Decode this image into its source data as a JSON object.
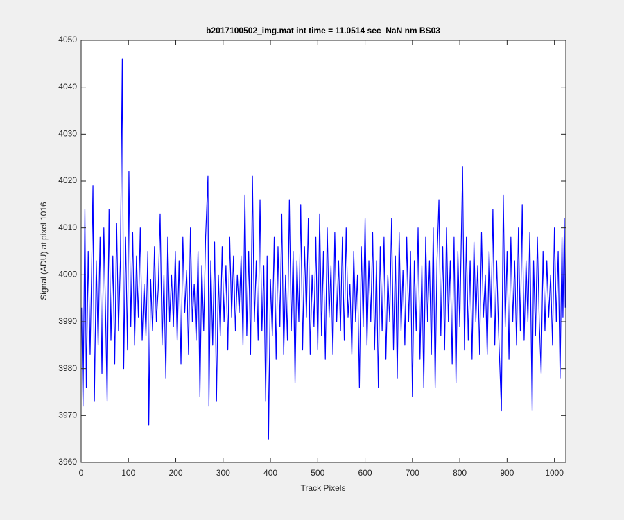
{
  "chart_data": {
    "type": "line",
    "title": "b2017100502_img.mat int time = 11.0514 sec  NaN nm BS03",
    "x_label": "Track Pixels",
    "y_label": "Signal (ADU) at pixel 1016",
    "xlim": [
      0,
      1024
    ],
    "ylim": [
      3960,
      4050
    ],
    "xticks": [
      0,
      100,
      200,
      300,
      400,
      500,
      600,
      700,
      800,
      900,
      1000
    ],
    "yticks": [
      3960,
      3970,
      3980,
      3990,
      4000,
      4010,
      4020,
      4030,
      4040,
      4050
    ],
    "grid": false,
    "x": [
      1,
      4,
      8,
      11,
      15,
      19,
      22,
      25,
      28,
      32,
      36,
      40,
      44,
      48,
      52,
      55,
      59,
      63,
      67,
      71,
      75,
      79,
      83,
      87,
      90,
      94,
      98,
      101,
      105,
      109,
      113,
      117,
      121,
      125,
      129,
      133,
      137,
      141,
      143,
      147,
      151,
      155,
      159,
      163,
      167,
      171,
      175,
      179,
      183,
      187,
      191,
      195,
      199,
      203,
      207,
      211,
      215,
      219,
      223,
      227,
      231,
      235,
      239,
      243,
      247,
      251,
      255,
      259,
      263,
      268,
      270,
      274,
      278,
      282,
      286,
      290,
      294,
      298,
      302,
      306,
      310,
      314,
      318,
      322,
      326,
      330,
      334,
      338,
      342,
      346,
      350,
      354,
      358,
      362,
      366,
      370,
      374,
      378,
      382,
      386,
      390,
      393,
      396,
      400,
      404,
      408,
      412,
      416,
      420,
      424,
      428,
      432,
      436,
      440,
      444,
      448,
      452,
      456,
      460,
      464,
      468,
      472,
      476,
      480,
      484,
      488,
      492,
      496,
      500,
      504,
      508,
      512,
      516,
      520,
      524,
      528,
      532,
      536,
      540,
      544,
      548,
      552,
      556,
      560,
      564,
      568,
      572,
      576,
      580,
      584,
      588,
      592,
      596,
      600,
      604,
      608,
      612,
      616,
      620,
      624,
      628,
      632,
      636,
      640,
      644,
      648,
      652,
      656,
      660,
      664,
      668,
      672,
      676,
      680,
      684,
      688,
      692,
      696,
      700,
      704,
      708,
      712,
      716,
      720,
      724,
      728,
      732,
      736,
      740,
      744,
      748,
      752,
      756,
      760,
      764,
      768,
      772,
      776,
      780,
      784,
      788,
      792,
      796,
      800,
      806,
      810,
      814,
      818,
      822,
      826,
      830,
      834,
      838,
      842,
      846,
      850,
      854,
      858,
      862,
      866,
      870,
      874,
      878,
      882,
      888,
      892,
      896,
      900,
      904,
      908,
      912,
      916,
      920,
      924,
      928,
      932,
      936,
      940,
      944,
      948,
      953,
      956,
      960,
      964,
      968,
      972,
      976,
      980,
      984,
      988,
      992,
      996,
      1000,
      1004,
      1008,
      1012,
      1016,
      1018,
      1021,
      1023
    ],
    "series": [
      {
        "color": "#0000ff",
        "values": [
          3993,
          3972,
          4014,
          3976,
          4005,
          3983,
          4000,
          4019,
          3973,
          4003,
          3985,
          4008,
          3979,
          4010,
          3990,
          3973,
          4014,
          3986,
          4004,
          3981,
          4011,
          3988,
          4003,
          4046,
          3980,
          4008,
          3984,
          4022,
          3989,
          4009,
          3985,
          4004,
          3991,
          4010,
          3986,
          3998,
          3987,
          4005,
          3968,
          3999,
          3988,
          4006,
          3990,
          3997,
          4013,
          3985,
          4000,
          3978,
          4008,
          3990,
          4000,
          3989,
          4005,
          3986,
          4003,
          3981,
          4008,
          3992,
          4001,
          3983,
          4010,
          3990,
          3998,
          3986,
          4005,
          3974,
          4002,
          3988,
          4008,
          4021,
          3972,
          4003,
          3985,
          4007,
          3973,
          4000,
          3987,
          4006,
          3990,
          4002,
          3984,
          4008,
          3991,
          4004,
          3988,
          4000,
          3992,
          4004,
          3985,
          4017,
          3987,
          4005,
          3983,
          4021,
          3990,
          4003,
          3986,
          4016,
          3988,
          4002,
          3973,
          4004,
          3965,
          3999,
          3987,
          4008,
          3982,
          4006,
          3989,
          4013,
          3983,
          4000,
          3986,
          4016,
          3988,
          4005,
          3977,
          4003,
          3990,
          4015,
          3984,
          4006,
          3991,
          4012,
          3983,
          4000,
          3989,
          4008,
          3984,
          4013,
          3987,
          4005,
          3982,
          4010,
          3991,
          4002,
          3983,
          4009,
          3990,
          4003,
          3988,
          4008,
          3986,
          4010,
          3991,
          3998,
          3983,
          4005,
          3990,
          4000,
          3976,
          4006,
          3989,
          4012,
          3985,
          4003,
          3990,
          4009,
          3984,
          4003,
          3976,
          4006,
          3988,
          4008,
          3982,
          4000,
          3990,
          4012,
          3984,
          4004,
          3978,
          4009,
          3988,
          4001,
          3985,
          4008,
          3990,
          4005,
          3974,
          4003,
          3988,
          4010,
          3982,
          4002,
          3976,
          4008,
          3990,
          4003,
          3983,
          4010,
          3976,
          4003,
          4016,
          3987,
          4006,
          3984,
          4010,
          3990,
          4003,
          3981,
          4008,
          3977,
          4005,
          3989,
          4023,
          3984,
          4008,
          3986,
          4003,
          3982,
          4007,
          3990,
          4002,
          3983,
          4009,
          3991,
          4000,
          3983,
          4005,
          3991,
          4014,
          3985,
          4003,
          3988,
          3971,
          4017,
          3989,
          4005,
          3982,
          4008,
          3990,
          4003,
          3985,
          4010,
          3988,
          4015,
          3986,
          4003,
          3990,
          4009,
          3971,
          4003,
          3987,
          4008,
          3990,
          3979,
          4005,
          3988,
          4003,
          3991,
          4000,
          3985,
          4010,
          3990,
          4005,
          3978,
          4008,
          3991,
          4012,
          3993
        ]
      }
    ]
  }
}
